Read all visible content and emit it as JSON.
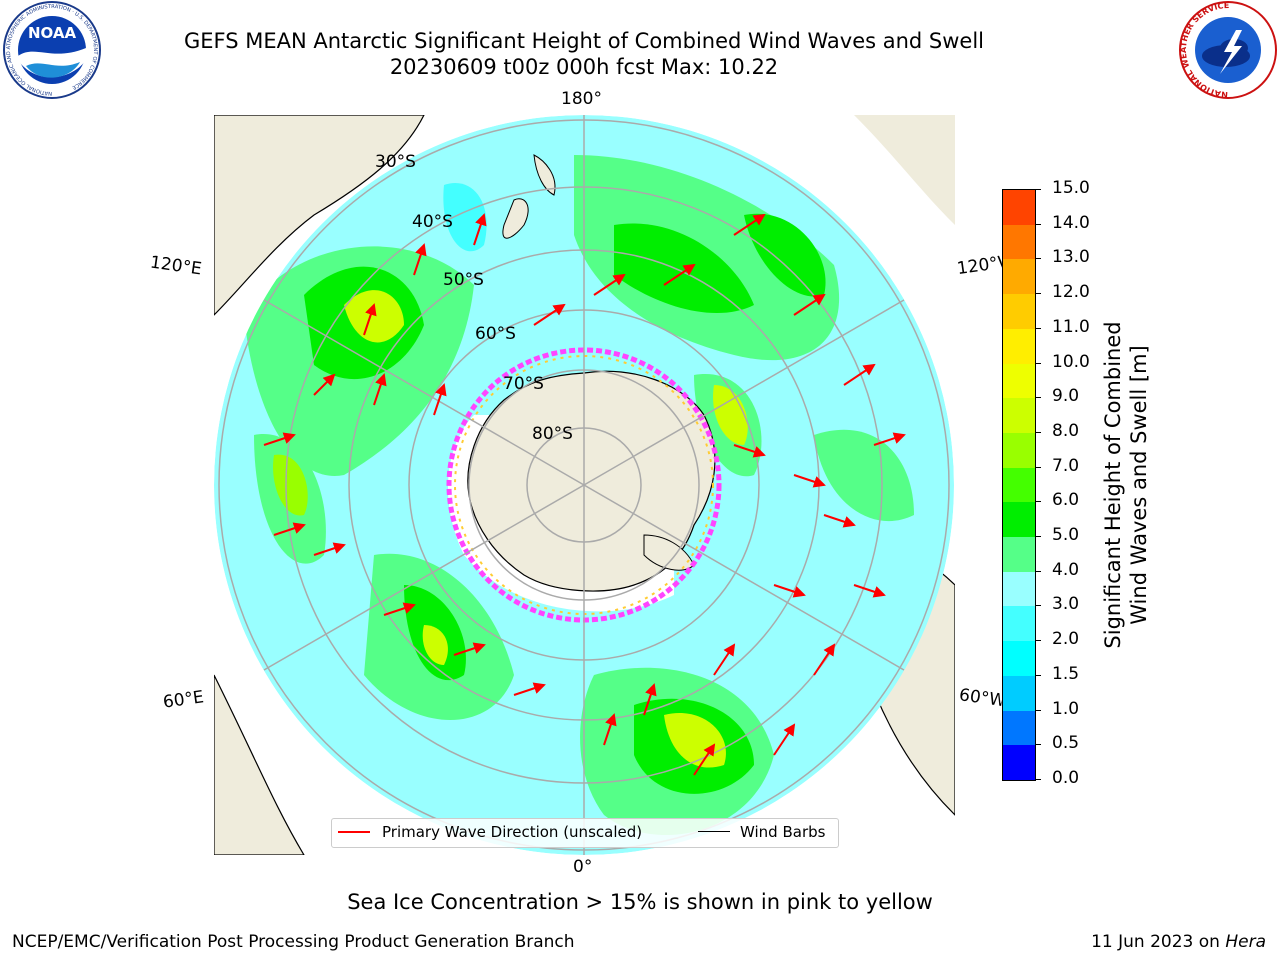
{
  "header": {
    "title": "GEFS MEAN Antarctic Significant Height of Combined Wind Waves and Swell",
    "subtitle": "20230609 t00z 000h fcst   Max: 10.22"
  },
  "logos": {
    "noaa_text": "NOAA",
    "noaa_ring": "NATIONAL OCEANIC AND ATMOSPHERIC ADMINISTRATION · U.S. DEPARTMENT OF COMMERCE",
    "nws_ring": "NATIONAL WEATHER SERVICE"
  },
  "map": {
    "longitude_labels": {
      "top": "180°",
      "bottom": "0°",
      "upper_left": "120°E",
      "lower_left": "60°E",
      "upper_right": "120°W",
      "lower_right": "60°W"
    },
    "latitude_labels": [
      "30°S",
      "40°S",
      "50°S",
      "60°S",
      "70°S",
      "80°S"
    ],
    "legend": {
      "wave_direction": "Primary Wave Direction (unscaled)",
      "wind_barbs": "Wind Barbs"
    },
    "colors": {
      "land": "#efecdc",
      "ice_pink": "#ff44ff",
      "ice_yellow": "#ffcc33",
      "arrow": "#ff0000",
      "grid": "#aaaaaa"
    }
  },
  "colorbar": {
    "label_line1": "Significant Height of Combined",
    "label_line2": "Wind Waves and Swell [m]",
    "ticks": [
      "0.0",
      "0.5",
      "1.0",
      "1.5",
      "2.0",
      "3.0",
      "4.0",
      "5.0",
      "6.0",
      "7.0",
      "8.0",
      "9.0",
      "10.0",
      "11.0",
      "12.0",
      "13.0",
      "14.0",
      "15.0"
    ],
    "colors": [
      "#0000ff",
      "#0077ff",
      "#00ccff",
      "#00ffff",
      "#44ffff",
      "#99ffff",
      "#55ff88",
      "#00ee00",
      "#44ff00",
      "#99ff00",
      "#ccff00",
      "#eeff00",
      "#ffee00",
      "#ffcc00",
      "#ffaa00",
      "#ff7700",
      "#ff4400",
      "#ff0000"
    ]
  },
  "footer": {
    "note": "Sea Ice Concentration > 15% is shown in pink to yellow",
    "credit": "NCEP/EMC/Verification Post Processing Product Generation Branch",
    "date_prefix": "11 Jun 2023 on ",
    "date_machine": "Hera"
  }
}
